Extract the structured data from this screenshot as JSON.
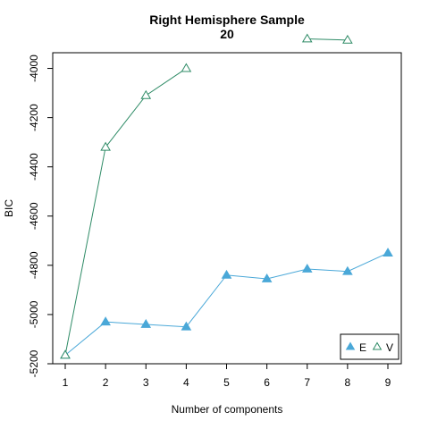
{
  "chart_data": {
    "type": "line",
    "title": "Right Hemisphere Sample",
    "subtitle": "20",
    "xlabel": "Number of components",
    "ylabel": "BIC",
    "x": [
      1,
      2,
      3,
      4,
      5,
      6,
      7,
      8,
      9
    ],
    "xlim": [
      1,
      9
    ],
    "ylim": [
      -5200,
      -3900
    ],
    "yticks": [
      -5200,
      -5000,
      -4800,
      -4600,
      -4400,
      -4200,
      -4000
    ],
    "series": [
      {
        "name": "E",
        "color": "#4aa8d8",
        "marker": "filled-triangle",
        "values": [
          -5165,
          -5030,
          -5040,
          -5050,
          -4840,
          -4855,
          -4815,
          -4825,
          -4750
        ]
      },
      {
        "name": "V",
        "color": "#2e8b66",
        "marker": "open-triangle",
        "values": [
          -5165,
          -4320,
          -4110,
          -4000,
          null,
          null,
          -3880,
          -3885,
          null
        ]
      }
    ],
    "legend": "bottom-right",
    "grid": false
  }
}
